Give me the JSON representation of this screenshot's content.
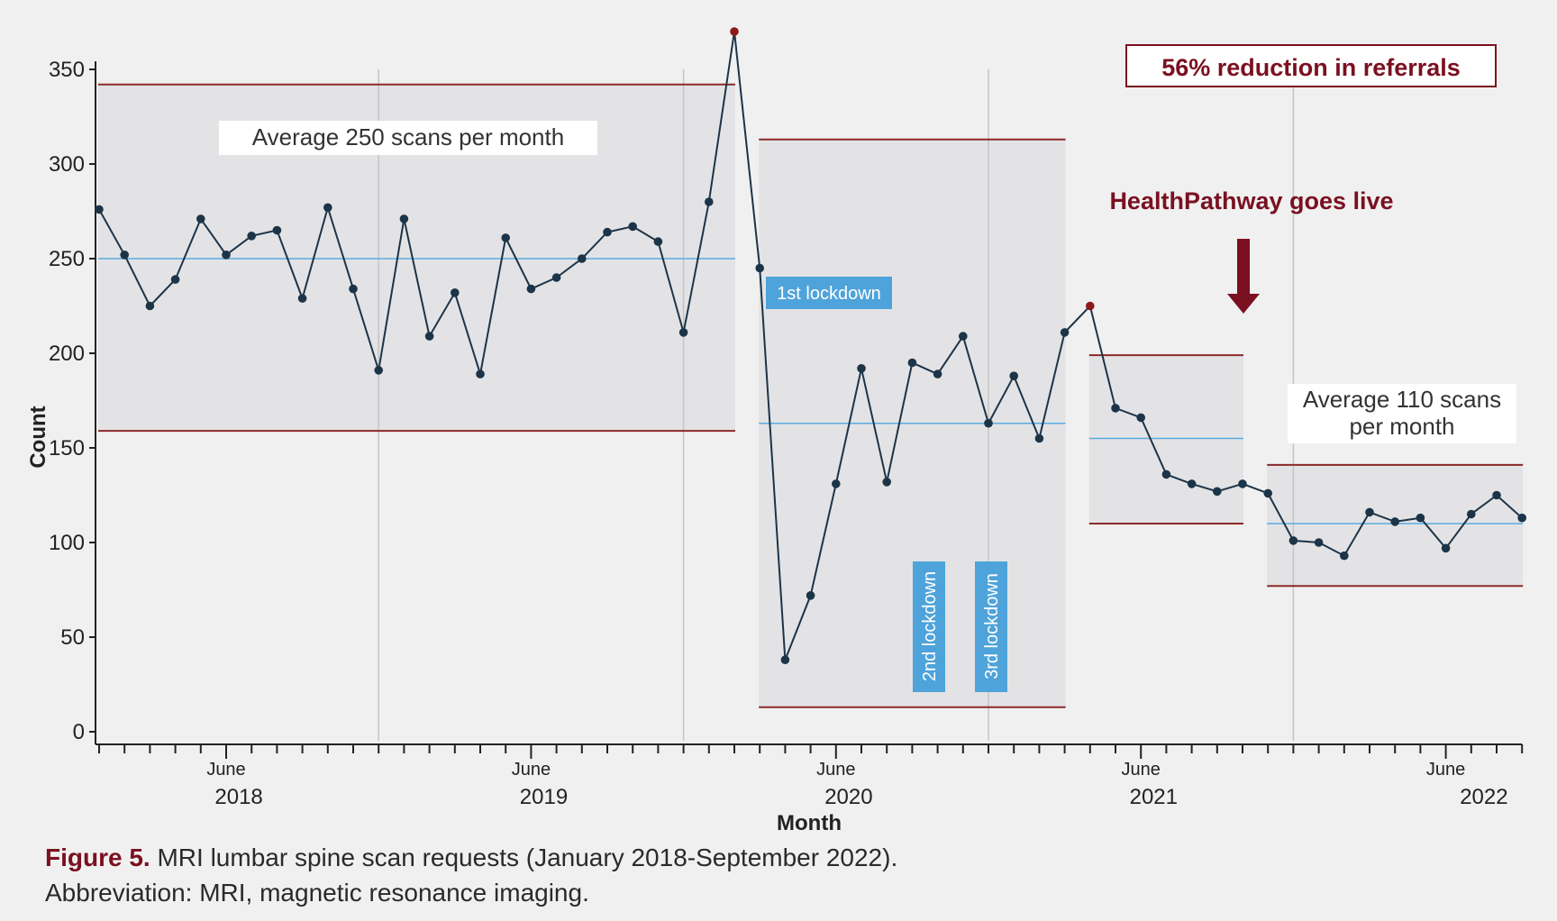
{
  "chart_data": {
    "type": "line",
    "title": "",
    "xlabel": "Month",
    "ylabel": "Count",
    "ylim": [
      0,
      350
    ],
    "yticks": [
      0,
      50,
      100,
      150,
      200,
      250,
      300,
      350
    ],
    "x_start": "2018-01",
    "x_end": "2022-09",
    "x_tick_minor_label": "June",
    "year_labels": [
      "2018",
      "2019",
      "2020",
      "2021",
      "2022"
    ],
    "series": [
      {
        "name": "MRI lumbar spine scan requests",
        "values": [
          276,
          252,
          225,
          239,
          271,
          252,
          262,
          265,
          229,
          277,
          234,
          191,
          271,
          209,
          232,
          189,
          261,
          234,
          240,
          250,
          264,
          267,
          259,
          211,
          280,
          370,
          245,
          38,
          72,
          131,
          192,
          132,
          195,
          189,
          209,
          163,
          188,
          155,
          211,
          225,
          171,
          166,
          136,
          131,
          127,
          131,
          126,
          101,
          100,
          93,
          116,
          111,
          113,
          97,
          115,
          125,
          113
        ]
      }
    ],
    "highlighted_points": [
      25,
      39
    ],
    "phases": [
      {
        "start": 0,
        "end": 25,
        "mean": 250,
        "ucl": 342,
        "lcl": 159
      },
      {
        "start": 26,
        "end": 38,
        "mean": 163,
        "ucl": 313,
        "lcl": 13
      },
      {
        "start": 39,
        "end": 45,
        "mean": 155,
        "ucl": 199,
        "lcl": 110
      },
      {
        "start": 46,
        "end": 56,
        "mean": 110,
        "ucl": 141,
        "lcl": 77
      }
    ],
    "annotations": {
      "avg1": "Average 250 scans per month",
      "avg2_line1": "Average 110 scans",
      "avg2_line2": "per month",
      "reduction": "56% reduction in referrals",
      "healthpathway": "HealthPathway goes live",
      "lockdown1": "1st lockdown",
      "lockdown2": "2nd lockdown",
      "lockdown3": "3rd lockdown"
    },
    "colors": {
      "line": "#1c3448",
      "point": "#1c3448",
      "highlight": "#8b1a1a",
      "mean": "#5aabdf",
      "limit": "#8b2a2a",
      "phase_fill": "#e3e3e5",
      "lockdown_fill": "#4ea3da",
      "annotation_red": "#7a1020",
      "grid": "#c4c4c4"
    }
  },
  "caption": {
    "label": "Figure 5.",
    "text": " MRI lumbar spine scan requests (January 2018-September 2022).",
    "abbreviation": "Abbreviation: MRI, magnetic resonance imaging."
  }
}
